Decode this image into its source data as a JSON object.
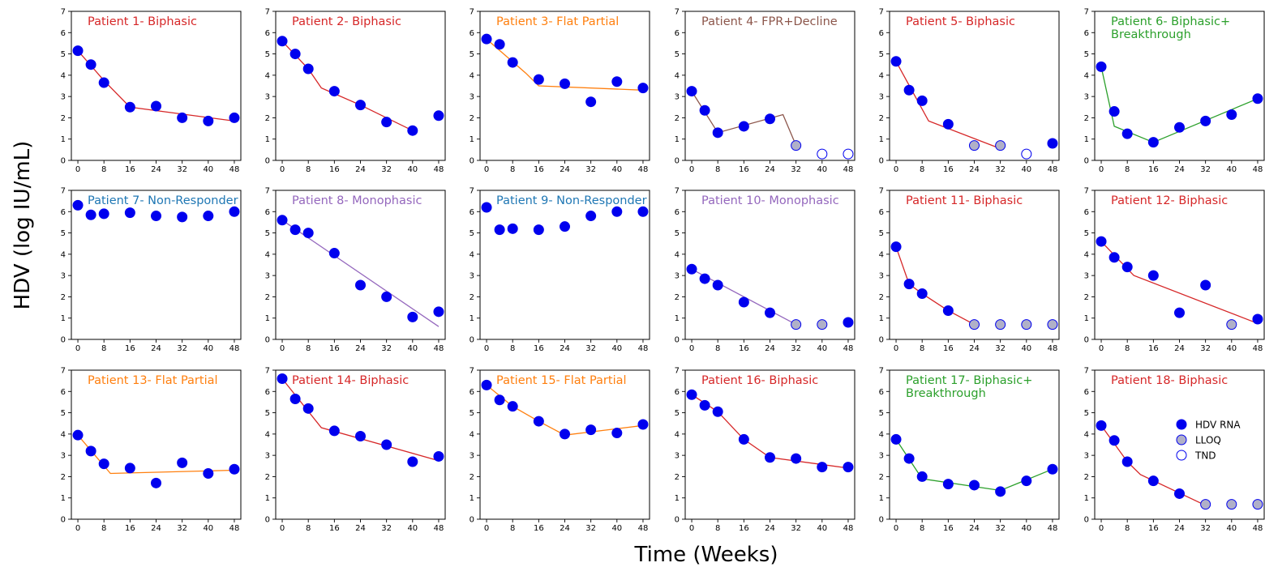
{
  "figure": {
    "ylabel": "HDV (log IU/mL)",
    "xlabel": "Time (Weeks)"
  },
  "legend": [
    {
      "label": "HDV RNA",
      "kind": "measured"
    },
    {
      "label": "LLOQ",
      "kind": "lloq"
    },
    {
      "label": "TND",
      "kind": "tnd"
    }
  ],
  "colors": {
    "marker_fill": "#0000ee",
    "lloq_fill": "#b0b0c8",
    "tnd_fill": "#ffffff",
    "marker_edge": "#0000ee",
    "Biphasic": "#d62728",
    "Flat Partial": "#ff7f0e",
    "FPR+Decline": "#8c564b",
    "Biphasic+ Breakthrough": "#2ca02c",
    "Non-Responder": "#1f77b4",
    "Monophasic": "#9467bd"
  },
  "chart_data": [
    {
      "type": "scatter",
      "title": [
        "Patient 1- Biphasic"
      ],
      "category": "Biphasic",
      "x": [
        0,
        4,
        8,
        16,
        24,
        32,
        40,
        48
      ],
      "y": [
        5.15,
        4.5,
        3.65,
        2.5,
        2.55,
        2.0,
        1.85,
        2.0
      ],
      "point_status": [
        "m",
        "m",
        "m",
        "m",
        "m",
        "m",
        "m",
        "m"
      ],
      "fit": {
        "x": [
          0,
          4,
          8,
          16,
          48
        ],
        "y": [
          5.15,
          4.45,
          3.75,
          2.5,
          1.85
        ]
      },
      "xlim": [
        -2,
        50
      ],
      "ylim": [
        0,
        7
      ],
      "xticks": [
        0,
        8,
        16,
        24,
        32,
        40,
        48
      ],
      "yticks": [
        0,
        1,
        2,
        3,
        4,
        5,
        6,
        7
      ]
    },
    {
      "type": "scatter",
      "title": [
        "Patient 2- Biphasic"
      ],
      "category": "Biphasic",
      "x": [
        0,
        4,
        8,
        16,
        24,
        32,
        40,
        48
      ],
      "y": [
        5.6,
        5.0,
        4.3,
        3.25,
        2.6,
        1.8,
        1.4,
        2.1
      ],
      "point_status": [
        "m",
        "m",
        "m",
        "m",
        "m",
        "m",
        "m",
        "m"
      ],
      "fit": {
        "x": [
          0,
          8,
          12,
          24,
          40
        ],
        "y": [
          5.6,
          4.3,
          3.4,
          2.6,
          1.4
        ]
      },
      "xlim": [
        -2,
        50
      ],
      "ylim": [
        0,
        7
      ],
      "xticks": [
        0,
        8,
        16,
        24,
        32,
        40,
        48
      ],
      "yticks": [
        0,
        1,
        2,
        3,
        4,
        5,
        6,
        7
      ]
    },
    {
      "type": "scatter",
      "title": [
        "Patient 3- Flat Partial"
      ],
      "category": "Flat Partial",
      "x": [
        0,
        4,
        8,
        16,
        24,
        32,
        40,
        48
      ],
      "y": [
        5.7,
        5.45,
        4.6,
        3.8,
        3.6,
        2.75,
        3.7,
        3.4
      ],
      "point_status": [
        "m",
        "m",
        "m",
        "m",
        "m",
        "m",
        "m",
        "m"
      ],
      "fit": {
        "x": [
          0,
          12,
          16,
          48
        ],
        "y": [
          5.7,
          4.1,
          3.5,
          3.3
        ]
      },
      "xlim": [
        -2,
        50
      ],
      "ylim": [
        0,
        7
      ],
      "xticks": [
        0,
        8,
        16,
        24,
        32,
        40,
        48
      ],
      "yticks": [
        0,
        1,
        2,
        3,
        4,
        5,
        6,
        7
      ]
    },
    {
      "type": "scatter",
      "title": [
        "Patient 4- FPR+Decline"
      ],
      "category": "FPR+Decline",
      "x": [
        0,
        4,
        8,
        16,
        24,
        32,
        40,
        48
      ],
      "y": [
        3.25,
        2.35,
        1.3,
        1.6,
        1.95,
        0.7,
        0.3,
        0.3
      ],
      "point_status": [
        "m",
        "m",
        "m",
        "m",
        "m",
        "l",
        "t",
        "t"
      ],
      "fit": {
        "x": [
          0,
          8,
          28,
          32
        ],
        "y": [
          3.25,
          1.3,
          2.15,
          0.7
        ]
      },
      "xlim": [
        -2,
        50
      ],
      "ylim": [
        0,
        7
      ],
      "xticks": [
        0,
        8,
        16,
        24,
        32,
        40,
        48
      ],
      "yticks": [
        0,
        1,
        2,
        3,
        4,
        5,
        6,
        7
      ]
    },
    {
      "type": "scatter",
      "title": [
        "Patient 5- Biphasic"
      ],
      "category": "Biphasic",
      "x": [
        0,
        4,
        8,
        16,
        24,
        32,
        40,
        48
      ],
      "y": [
        4.65,
        3.3,
        2.8,
        1.7,
        0.7,
        0.7,
        0.3,
        0.8
      ],
      "point_status": [
        "m",
        "m",
        "m",
        "m",
        "l",
        "l",
        "t",
        "m"
      ],
      "fit": {
        "x": [
          0,
          10,
          32
        ],
        "y": [
          4.65,
          1.85,
          0.55
        ]
      },
      "xlim": [
        -2,
        50
      ],
      "ylim": [
        0,
        7
      ],
      "xticks": [
        0,
        8,
        16,
        24,
        32,
        40,
        48
      ],
      "yticks": [
        0,
        1,
        2,
        3,
        4,
        5,
        6,
        7
      ]
    },
    {
      "type": "scatter",
      "title": [
        "Patient 6- Biphasic+",
        "Breakthrough"
      ],
      "category": "Biphasic+ Breakthrough",
      "x": [
        0,
        4,
        8,
        16,
        24,
        32,
        40,
        48
      ],
      "y": [
        4.4,
        2.3,
        1.25,
        0.85,
        1.55,
        1.85,
        2.15,
        2.9
      ],
      "point_status": [
        "m",
        "m",
        "m",
        "m",
        "m",
        "m",
        "m",
        "m"
      ],
      "fit": {
        "x": [
          0,
          4,
          16,
          48
        ],
        "y": [
          4.4,
          1.6,
          0.85,
          2.9
        ]
      },
      "xlim": [
        -2,
        50
      ],
      "ylim": [
        0,
        7
      ],
      "xticks": [
        0,
        8,
        16,
        24,
        32,
        40,
        48
      ],
      "yticks": [
        0,
        1,
        2,
        3,
        4,
        5,
        6,
        7
      ]
    },
    {
      "type": "scatter",
      "title": [
        "Patient 7- Non-Responder"
      ],
      "category": "Non-Responder",
      "x": [
        0,
        4,
        8,
        16,
        24,
        32,
        40,
        48
      ],
      "y": [
        6.3,
        5.85,
        5.9,
        5.95,
        5.8,
        5.75,
        5.8,
        6.0
      ],
      "point_status": [
        "m",
        "m",
        "m",
        "m",
        "m",
        "m",
        "m",
        "m"
      ],
      "fit": null,
      "xlim": [
        -2,
        50
      ],
      "ylim": [
        0,
        7
      ],
      "xticks": [
        0,
        8,
        16,
        24,
        32,
        40,
        48
      ],
      "yticks": [
        0,
        1,
        2,
        3,
        4,
        5,
        6,
        7
      ]
    },
    {
      "type": "scatter",
      "title": [
        "Patient 8- Monophasic"
      ],
      "category": "Monophasic",
      "x": [
        0,
        4,
        8,
        16,
        24,
        32,
        40,
        48
      ],
      "y": [
        5.6,
        5.15,
        5.0,
        4.05,
        2.55,
        2.0,
        1.05,
        1.3
      ],
      "point_status": [
        "m",
        "m",
        "m",
        "m",
        "m",
        "m",
        "m",
        "m"
      ],
      "fit": {
        "x": [
          0,
          48
        ],
        "y": [
          5.6,
          0.6
        ]
      },
      "xlim": [
        -2,
        50
      ],
      "ylim": [
        0,
        7
      ],
      "xticks": [
        0,
        8,
        16,
        24,
        32,
        40,
        48
      ],
      "yticks": [
        0,
        1,
        2,
        3,
        4,
        5,
        6,
        7
      ]
    },
    {
      "type": "scatter",
      "title": [
        "Patient 9- Non-Responder"
      ],
      "category": "Non-Responder",
      "x": [
        0,
        4,
        8,
        16,
        24,
        32,
        40,
        48
      ],
      "y": [
        6.2,
        5.15,
        5.2,
        5.15,
        5.3,
        5.8,
        6.0,
        6.0
      ],
      "point_status": [
        "m",
        "m",
        "m",
        "m",
        "m",
        "m",
        "m",
        "m"
      ],
      "fit": null,
      "xlim": [
        -2,
        50
      ],
      "ylim": [
        0,
        7
      ],
      "xticks": [
        0,
        8,
        16,
        24,
        32,
        40,
        48
      ],
      "yticks": [
        0,
        1,
        2,
        3,
        4,
        5,
        6,
        7
      ]
    },
    {
      "type": "scatter",
      "title": [
        "Patient 10- Monophasic"
      ],
      "category": "Monophasic",
      "x": [
        0,
        4,
        8,
        16,
        24,
        32,
        40,
        48
      ],
      "y": [
        3.3,
        2.85,
        2.55,
        1.75,
        1.25,
        0.7,
        0.7,
        0.8
      ],
      "point_status": [
        "m",
        "m",
        "m",
        "m",
        "m",
        "l",
        "l",
        "m"
      ],
      "fit": {
        "x": [
          0,
          32
        ],
        "y": [
          3.3,
          0.7
        ]
      },
      "xlim": [
        -2,
        50
      ],
      "ylim": [
        0,
        7
      ],
      "xticks": [
        0,
        8,
        16,
        24,
        32,
        40,
        48
      ],
      "yticks": [
        0,
        1,
        2,
        3,
        4,
        5,
        6,
        7
      ]
    },
    {
      "type": "scatter",
      "title": [
        "Patient 11- Biphasic"
      ],
      "category": "Biphasic",
      "x": [
        0,
        4,
        8,
        16,
        24,
        32,
        40,
        48
      ],
      "y": [
        4.35,
        2.6,
        2.15,
        1.35,
        0.7,
        0.7,
        0.7,
        0.7
      ],
      "point_status": [
        "m",
        "m",
        "m",
        "m",
        "l",
        "l",
        "l",
        "l"
      ],
      "fit": {
        "x": [
          0,
          4,
          8,
          16,
          24
        ],
        "y": [
          4.35,
          2.6,
          2.15,
          1.35,
          0.7
        ]
      },
      "xlim": [
        -2,
        50
      ],
      "ylim": [
        0,
        7
      ],
      "xticks": [
        0,
        8,
        16,
        24,
        32,
        40,
        48
      ],
      "yticks": [
        0,
        1,
        2,
        3,
        4,
        5,
        6,
        7
      ]
    },
    {
      "type": "scatter",
      "title": [
        "Patient 12- Biphasic"
      ],
      "category": "Biphasic",
      "x": [
        0,
        4,
        8,
        16,
        24,
        32,
        40,
        48
      ],
      "y": [
        4.6,
        3.85,
        3.4,
        3.0,
        1.25,
        2.55,
        0.7,
        0.95
      ],
      "point_status": [
        "m",
        "m",
        "m",
        "m",
        "m",
        "m",
        "l",
        "m"
      ],
      "fit": {
        "x": [
          0,
          10,
          48
        ],
        "y": [
          4.6,
          3.0,
          0.75
        ]
      },
      "xlim": [
        -2,
        50
      ],
      "ylim": [
        0,
        7
      ],
      "xticks": [
        0,
        8,
        16,
        24,
        32,
        40,
        48
      ],
      "yticks": [
        0,
        1,
        2,
        3,
        4,
        5,
        6,
        7
      ]
    },
    {
      "type": "scatter",
      "title": [
        "Patient 13- Flat Partial"
      ],
      "category": "Flat Partial",
      "x": [
        0,
        4,
        8,
        16,
        24,
        32,
        40,
        48
      ],
      "y": [
        3.95,
        3.2,
        2.6,
        2.4,
        1.7,
        2.65,
        2.15,
        2.35
      ],
      "point_status": [
        "m",
        "m",
        "m",
        "m",
        "m",
        "m",
        "m",
        "m"
      ],
      "fit": {
        "x": [
          0,
          10,
          48
        ],
        "y": [
          3.95,
          2.15,
          2.3
        ]
      },
      "xlim": [
        -2,
        50
      ],
      "ylim": [
        0,
        7
      ],
      "xticks": [
        0,
        8,
        16,
        24,
        32,
        40,
        48
      ],
      "yticks": [
        0,
        1,
        2,
        3,
        4,
        5,
        6,
        7
      ]
    },
    {
      "type": "scatter",
      "title": [
        "Patient 14- Biphasic"
      ],
      "category": "Biphasic",
      "x": [
        0,
        4,
        8,
        16,
        24,
        32,
        40,
        48
      ],
      "y": [
        6.6,
        5.65,
        5.2,
        4.15,
        3.9,
        3.5,
        2.7,
        2.95
      ],
      "point_status": [
        "m",
        "m",
        "m",
        "m",
        "m",
        "m",
        "m",
        "m"
      ],
      "fit": {
        "x": [
          0,
          12,
          48
        ],
        "y": [
          6.6,
          4.3,
          2.75
        ]
      },
      "xlim": [
        -2,
        50
      ],
      "ylim": [
        0,
        7
      ],
      "xticks": [
        0,
        8,
        16,
        24,
        32,
        40,
        48
      ],
      "yticks": [
        0,
        1,
        2,
        3,
        4,
        5,
        6,
        7
      ]
    },
    {
      "type": "scatter",
      "title": [
        "Patient 15- Flat Partial"
      ],
      "category": "Flat Partial",
      "x": [
        0,
        4,
        8,
        16,
        24,
        32,
        40,
        48
      ],
      "y": [
        6.3,
        5.6,
        5.3,
        4.6,
        4.0,
        4.2,
        4.05,
        4.45
      ],
      "point_status": [
        "m",
        "m",
        "m",
        "m",
        "m",
        "m",
        "m",
        "m"
      ],
      "fit": {
        "x": [
          0,
          8,
          16,
          24,
          48
        ],
        "y": [
          6.3,
          5.3,
          4.6,
          3.95,
          4.4
        ]
      },
      "xlim": [
        -2,
        50
      ],
      "ylim": [
        0,
        7
      ],
      "xticks": [
        0,
        8,
        16,
        24,
        32,
        40,
        48
      ],
      "yticks": [
        0,
        1,
        2,
        3,
        4,
        5,
        6,
        7
      ]
    },
    {
      "type": "scatter",
      "title": [
        "Patient 16- Biphasic"
      ],
      "category": "Biphasic",
      "x": [
        0,
        4,
        8,
        16,
        24,
        32,
        40,
        48
      ],
      "y": [
        5.85,
        5.35,
        5.05,
        3.75,
        2.9,
        2.85,
        2.45,
        2.45
      ],
      "point_status": [
        "m",
        "m",
        "m",
        "m",
        "m",
        "m",
        "m",
        "m"
      ],
      "fit": {
        "x": [
          0,
          8,
          16,
          24,
          48
        ],
        "y": [
          5.85,
          5.05,
          3.75,
          2.9,
          2.4
        ]
      },
      "xlim": [
        -2,
        50
      ],
      "ylim": [
        0,
        7
      ],
      "xticks": [
        0,
        8,
        16,
        24,
        32,
        40,
        48
      ],
      "yticks": [
        0,
        1,
        2,
        3,
        4,
        5,
        6,
        7
      ]
    },
    {
      "type": "scatter",
      "title": [
        "Patient 17- Biphasic+",
        "Breakthrough"
      ],
      "category": "Biphasic+ Breakthrough",
      "x": [
        0,
        4,
        8,
        16,
        24,
        32,
        40,
        48
      ],
      "y": [
        3.75,
        2.85,
        2.0,
        1.65,
        1.6,
        1.3,
        1.8,
        2.35
      ],
      "point_status": [
        "m",
        "m",
        "m",
        "m",
        "m",
        "m",
        "m",
        "m"
      ],
      "fit": {
        "x": [
          0,
          8,
          32,
          48
        ],
        "y": [
          3.75,
          1.9,
          1.35,
          2.35
        ]
      },
      "xlim": [
        -2,
        50
      ],
      "ylim": [
        0,
        7
      ],
      "xticks": [
        0,
        8,
        16,
        24,
        32,
        40,
        48
      ],
      "yticks": [
        0,
        1,
        2,
        3,
        4,
        5,
        6,
        7
      ]
    },
    {
      "type": "scatter",
      "title": [
        "Patient 18- Biphasic"
      ],
      "category": "Biphasic",
      "x": [
        0,
        4,
        8,
        16,
        24,
        32,
        40,
        48
      ],
      "y": [
        4.4,
        3.7,
        2.7,
        1.8,
        1.2,
        0.7,
        0.7,
        0.7
      ],
      "point_status": [
        "m",
        "m",
        "m",
        "m",
        "m",
        "l",
        "l",
        "l"
      ],
      "fit": {
        "x": [
          0,
          8,
          12,
          32
        ],
        "y": [
          4.4,
          2.7,
          2.1,
          0.65
        ]
      },
      "xlim": [
        -2,
        50
      ],
      "ylim": [
        0,
        7
      ],
      "xticks": [
        0,
        8,
        16,
        24,
        32,
        40,
        48
      ],
      "yticks": [
        0,
        1,
        2,
        3,
        4,
        5,
        6,
        7
      ]
    }
  ]
}
